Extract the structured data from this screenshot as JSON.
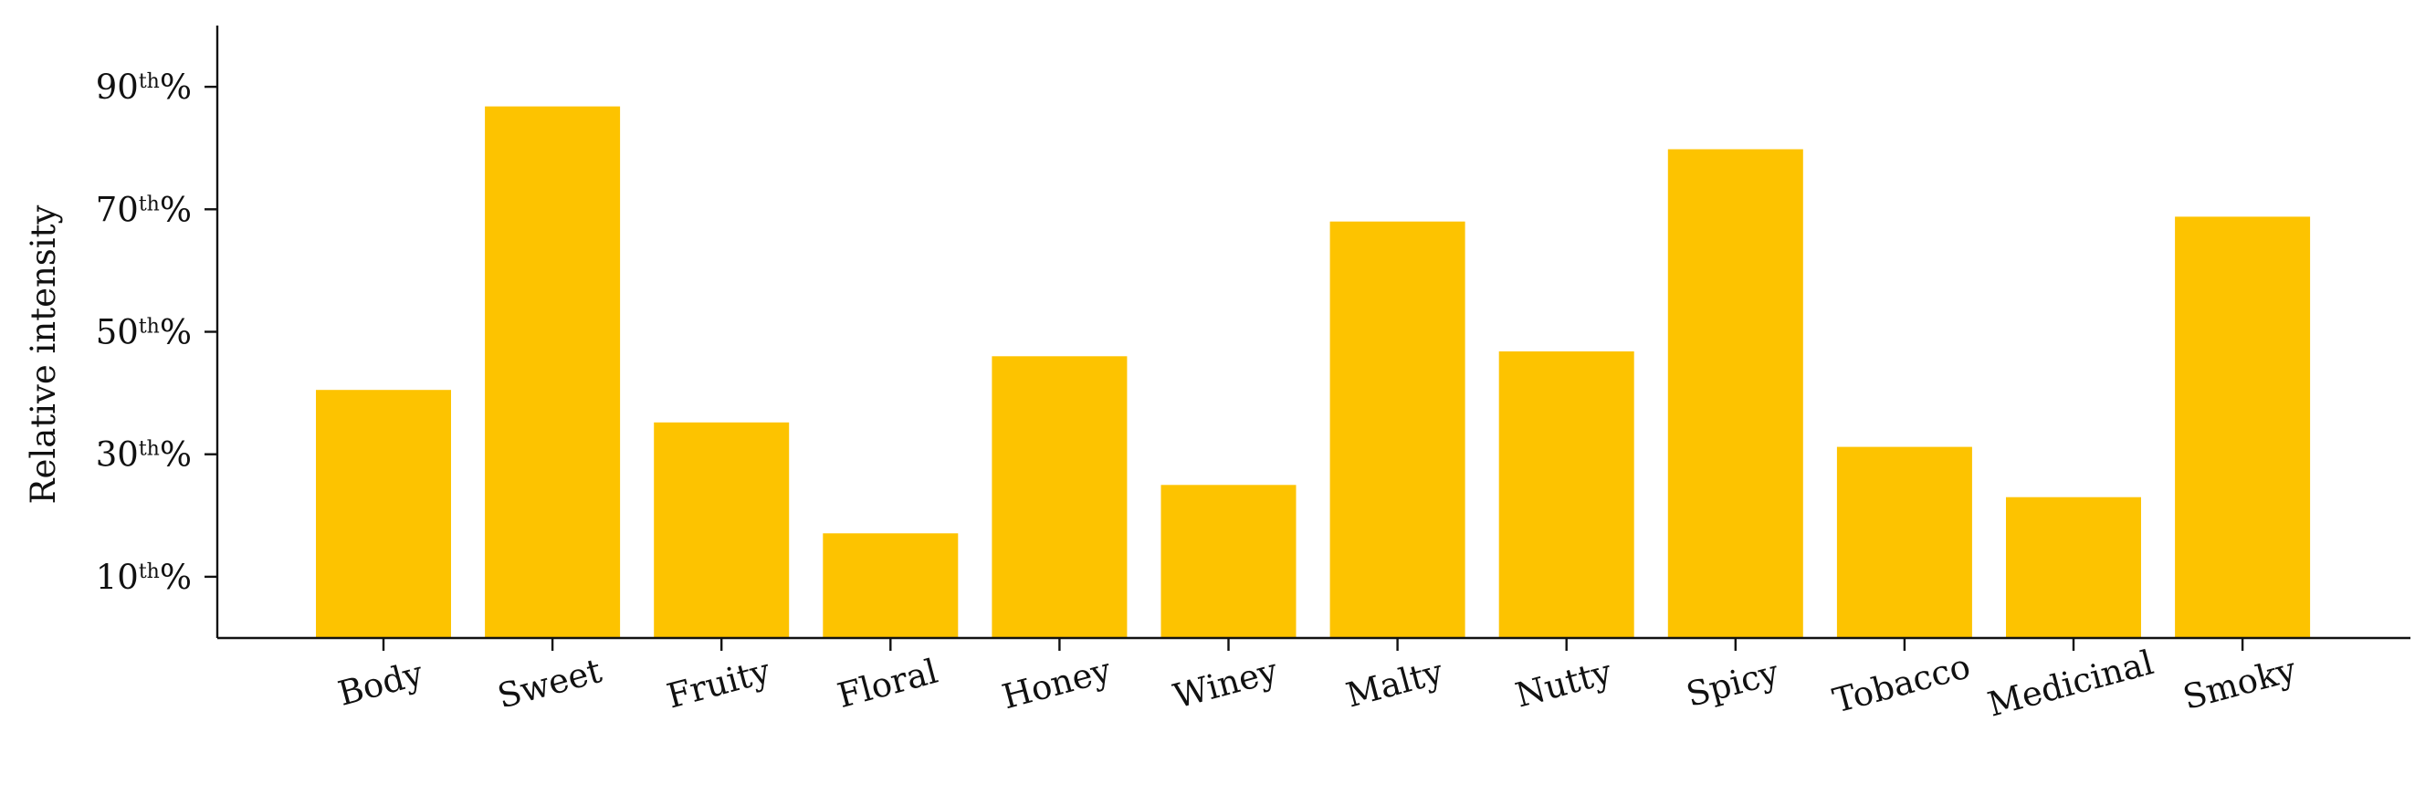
{
  "chart_data": {
    "type": "bar",
    "title": "",
    "xlabel": "",
    "ylabel": "Relative intensity",
    "categories": [
      "Body",
      "Sweet",
      "Fruity",
      "Floral",
      "Honey",
      "Winey",
      "Malty",
      "Nutty",
      "Spicy",
      "Tobacco",
      "Medicinal",
      "Smoky"
    ],
    "values": [
      40.5,
      86.8,
      35.2,
      17.1,
      46.0,
      25.0,
      68.0,
      46.8,
      79.8,
      31.2,
      23.0,
      68.8
    ],
    "ylim": [
      0,
      100
    ],
    "yticks": [
      10,
      30,
      50,
      70,
      90
    ],
    "ytick_labels": [
      {
        "base": "10",
        "sup": "th",
        "suffix": "%"
      },
      {
        "base": "30",
        "sup": "th",
        "suffix": "%"
      },
      {
        "base": "50",
        "sup": "th",
        "suffix": "%"
      },
      {
        "base": "70",
        "sup": "th",
        "suffix": "%"
      },
      {
        "base": "90",
        "sup": "th",
        "suffix": "%"
      }
    ],
    "grid": false,
    "legend": "none",
    "bar_color": "#FDC300"
  }
}
